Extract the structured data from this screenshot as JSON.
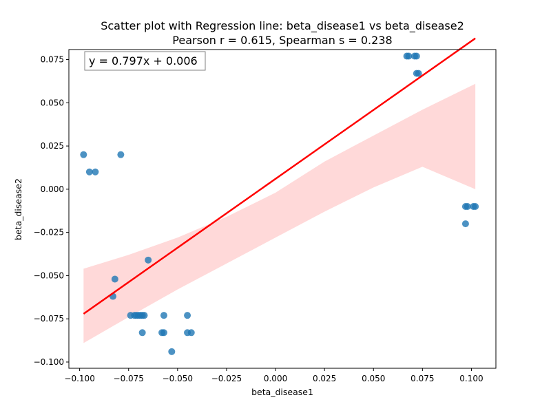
{
  "chart_data": {
    "type": "scatter",
    "title": "Scatter plot with Regression line: beta_disease1 vs beta_disease2",
    "subtitle": "Pearson r = 0.615, Spearman s = 0.238",
    "xlabel": "beta_disease1",
    "ylabel": "beta_disease2",
    "xlim": [
      -0.1055,
      0.1125
    ],
    "ylim": [
      -0.1036,
      0.0808
    ],
    "xticks": [
      -0.1,
      -0.075,
      -0.05,
      -0.025,
      0.0,
      0.025,
      0.05,
      0.075,
      0.1
    ],
    "xtick_labels": [
      "−0.100",
      "−0.075",
      "−0.050",
      "−0.025",
      "0.000",
      "0.025",
      "0.050",
      "0.075",
      "0.100"
    ],
    "yticks": [
      -0.1,
      -0.075,
      -0.05,
      -0.025,
      0.0,
      0.025,
      0.05,
      0.075
    ],
    "ytick_labels": [
      "−0.100",
      "−0.075",
      "−0.050",
      "−0.025",
      "0.000",
      "0.025",
      "0.050",
      "0.075"
    ],
    "equation_label": "y = 0.797x + 0.006",
    "regression": {
      "slope": 0.797,
      "intercept": 0.006,
      "x_range": [
        -0.098,
        0.102
      ]
    },
    "confidence_band": {
      "x": [
        -0.098,
        -0.075,
        -0.05,
        -0.025,
        0.0,
        0.025,
        0.05,
        0.075,
        0.102
      ],
      "lower": [
        -0.089,
        -0.074,
        -0.058,
        -0.043,
        -0.028,
        -0.013,
        0.001,
        0.013,
        0.0
      ],
      "upper": [
        -0.046,
        -0.038,
        -0.028,
        -0.016,
        -0.002,
        0.016,
        0.031,
        0.046,
        0.061
      ]
    },
    "colors": {
      "points": "#1f77b4",
      "line": "#ff0000",
      "band": "#ffd2d2"
    },
    "grid": false,
    "points": [
      {
        "x": -0.098,
        "y": 0.02
      },
      {
        "x": -0.095,
        "y": 0.01
      },
      {
        "x": -0.092,
        "y": 0.01
      },
      {
        "x": -0.079,
        "y": 0.02
      },
      {
        "x": -0.082,
        "y": -0.052
      },
      {
        "x": -0.083,
        "y": -0.062
      },
      {
        "x": -0.065,
        "y": -0.041
      },
      {
        "x": -0.074,
        "y": -0.073
      },
      {
        "x": -0.072,
        "y": -0.073
      },
      {
        "x": -0.071,
        "y": -0.073
      },
      {
        "x": -0.07,
        "y": -0.073
      },
      {
        "x": -0.069,
        "y": -0.073
      },
      {
        "x": -0.068,
        "y": -0.073
      },
      {
        "x": -0.067,
        "y": -0.073
      },
      {
        "x": -0.057,
        "y": -0.073
      },
      {
        "x": -0.045,
        "y": -0.073
      },
      {
        "x": -0.068,
        "y": -0.083
      },
      {
        "x": -0.058,
        "y": -0.083
      },
      {
        "x": -0.057,
        "y": -0.083
      },
      {
        "x": -0.045,
        "y": -0.083
      },
      {
        "x": -0.043,
        "y": -0.083
      },
      {
        "x": -0.053,
        "y": -0.094
      },
      {
        "x": 0.067,
        "y": 0.077
      },
      {
        "x": 0.068,
        "y": 0.077
      },
      {
        "x": 0.071,
        "y": 0.077
      },
      {
        "x": 0.072,
        "y": 0.077
      },
      {
        "x": 0.072,
        "y": 0.067
      },
      {
        "x": 0.073,
        "y": 0.067
      },
      {
        "x": 0.097,
        "y": -0.01
      },
      {
        "x": 0.098,
        "y": -0.01
      },
      {
        "x": 0.101,
        "y": -0.01
      },
      {
        "x": 0.102,
        "y": -0.01
      },
      {
        "x": 0.097,
        "y": -0.02
      }
    ]
  }
}
